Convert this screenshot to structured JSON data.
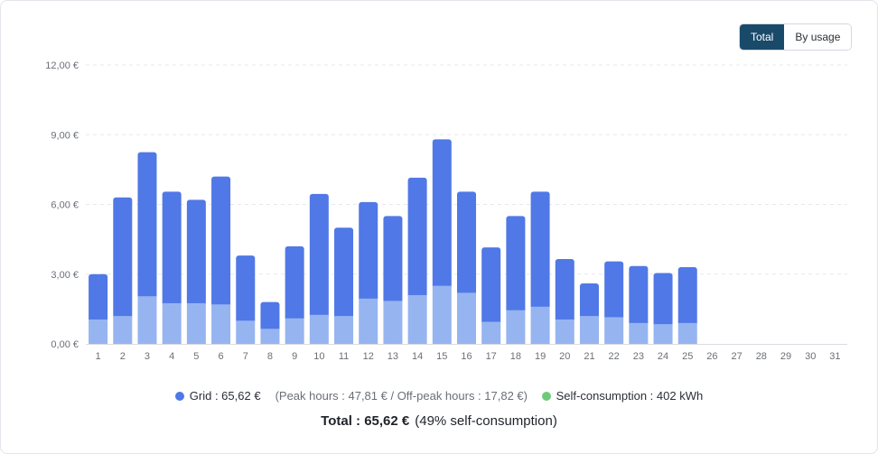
{
  "toggle": {
    "options": [
      "Total",
      "By usage"
    ],
    "active": 0
  },
  "chart_data": {
    "type": "bar",
    "stacked": true,
    "categories": [
      "1",
      "2",
      "3",
      "4",
      "5",
      "6",
      "7",
      "8",
      "9",
      "10",
      "11",
      "12",
      "13",
      "14",
      "15",
      "16",
      "17",
      "18",
      "19",
      "20",
      "21",
      "22",
      "23",
      "24",
      "25",
      "26",
      "27",
      "28",
      "29",
      "30",
      "31"
    ],
    "yticks": [
      "0,00 €",
      "3,00 €",
      "6,00 €",
      "9,00 €",
      "12,00 €"
    ],
    "ylim": [
      0,
      12
    ],
    "grid": true,
    "series": [
      {
        "name": "Off-peak",
        "color": "#96b4f0",
        "values": [
          1.05,
          1.2,
          2.05,
          1.75,
          1.75,
          1.7,
          1.0,
          0.65,
          1.1,
          1.25,
          1.2,
          1.95,
          1.85,
          2.1,
          2.5,
          2.2,
          0.95,
          1.45,
          1.6,
          1.05,
          1.2,
          1.15,
          0.9,
          0.85,
          0.9,
          0,
          0,
          0,
          0,
          0,
          0
        ]
      },
      {
        "name": "Peak",
        "color": "#5078e6",
        "values": [
          1.95,
          5.1,
          6.2,
          4.8,
          4.45,
          5.5,
          2.8,
          1.15,
          3.1,
          5.2,
          3.8,
          4.15,
          3.65,
          5.05,
          6.3,
          4.35,
          3.2,
          4.05,
          4.95,
          2.6,
          1.4,
          2.4,
          2.45,
          2.2,
          2.4,
          0,
          0,
          0,
          0,
          0,
          0
        ]
      }
    ]
  },
  "legend": {
    "grid": {
      "label": "Grid : 65,62 €",
      "color": "#5078e6"
    },
    "grid_detail": "(Peak hours : 47,81 € / Off-peak hours : 17,82 €)",
    "self": {
      "label": "Self-consumption : 402 kWh",
      "color": "#6ccb7a"
    }
  },
  "total": {
    "label": "Total : 65,62 €",
    "pct": "(49% self-consumption)"
  }
}
